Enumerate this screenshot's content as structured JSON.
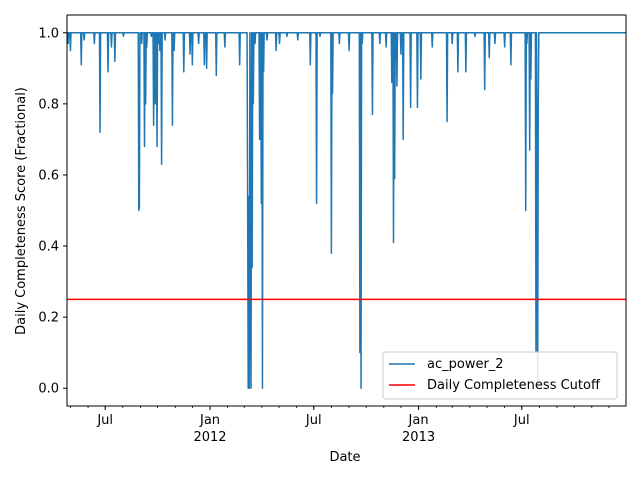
{
  "chart_data": {
    "type": "line",
    "title": "",
    "xlabel": "Date",
    "ylabel": "Daily Completeness Score (Fractional)",
    "xlim": [
      "2011-04-25",
      "2013-12-31"
    ],
    "ylim": [
      -0.05,
      1.05
    ],
    "yticks": [
      "0.0",
      "0.2",
      "0.4",
      "0.6",
      "0.8",
      "1.0"
    ],
    "xticks": [
      {
        "date": "2011-07-01",
        "label": "Jul",
        "sublabel": ""
      },
      {
        "date": "2012-01-01",
        "label": "Jan",
        "sublabel": "2012"
      },
      {
        "date": "2012-07-01",
        "label": "Jul",
        "sublabel": ""
      },
      {
        "date": "2013-01-01",
        "label": "Jan",
        "sublabel": "2013"
      },
      {
        "date": "2013-07-01",
        "label": "Jul",
        "sublabel": ""
      }
    ],
    "grid": false,
    "legend_position": "lower-right",
    "series": [
      {
        "name": "ac_power_2",
        "color": "#1f77b4",
        "baseline": 1.0,
        "dips": [
          [
            "2011-04-27",
            0.97
          ],
          [
            "2011-05-01",
            0.95
          ],
          [
            "2011-05-20",
            0.91
          ],
          [
            "2011-05-25",
            0.98
          ],
          [
            "2011-06-12",
            0.97
          ],
          [
            "2011-06-22",
            0.72
          ],
          [
            "2011-07-06",
            0.89
          ],
          [
            "2011-07-12",
            0.96
          ],
          [
            "2011-07-18",
            0.92
          ],
          [
            "2011-08-02",
            0.99
          ],
          [
            "2011-08-29",
            0.5
          ],
          [
            "2011-08-30",
            0.51
          ],
          [
            "2011-09-03",
            0.97
          ],
          [
            "2011-09-08",
            0.68
          ],
          [
            "2011-09-10",
            0.8
          ],
          [
            "2011-09-12",
            0.96
          ],
          [
            "2011-09-20",
            0.99
          ],
          [
            "2011-09-24",
            0.74
          ],
          [
            "2011-09-27",
            0.8
          ],
          [
            "2011-09-30",
            0.68
          ],
          [
            "2011-10-03",
            0.97
          ],
          [
            "2011-10-05",
            0.95
          ],
          [
            "2011-10-08",
            0.63
          ],
          [
            "2011-10-14",
            0.98
          ],
          [
            "2011-10-27",
            0.74
          ],
          [
            "2011-10-30",
            0.95
          ],
          [
            "2011-11-16",
            0.89
          ],
          [
            "2011-11-27",
            0.94
          ],
          [
            "2011-12-01",
            0.91
          ],
          [
            "2011-12-12",
            0.97
          ],
          [
            "2011-12-22",
            0.91
          ],
          [
            "2011-12-26",
            0.9
          ],
          [
            "2012-01-12",
            0.88
          ],
          [
            "2012-01-27",
            0.96
          ],
          [
            "2012-02-22",
            0.91
          ],
          [
            "2012-03-07",
            0.52
          ],
          [
            "2012-03-08",
            0.0
          ],
          [
            "2012-03-09",
            0.54
          ],
          [
            "2012-03-10",
            0.0
          ],
          [
            "2012-03-12",
            0.39
          ],
          [
            "2012-03-13",
            0.0
          ],
          [
            "2012-03-15",
            0.34
          ],
          [
            "2012-03-17",
            0.8
          ],
          [
            "2012-03-20",
            0.97
          ],
          [
            "2012-03-28",
            0.7
          ],
          [
            "2012-03-31",
            0.52
          ],
          [
            "2012-04-02",
            0.0
          ],
          [
            "2012-04-04",
            0.89
          ],
          [
            "2012-04-10",
            0.98
          ],
          [
            "2012-04-26",
            0.95
          ],
          [
            "2012-05-02",
            0.97
          ],
          [
            "2012-05-15",
            0.99
          ],
          [
            "2012-06-03",
            0.98
          ],
          [
            "2012-06-25",
            0.91
          ],
          [
            "2012-07-06",
            0.52
          ],
          [
            "2012-07-12",
            0.99
          ],
          [
            "2012-08-01",
            0.38
          ],
          [
            "2012-08-03",
            0.83
          ],
          [
            "2012-08-15",
            0.97
          ],
          [
            "2012-09-01",
            0.95
          ],
          [
            "2012-09-20",
            0.1
          ],
          [
            "2012-09-22",
            0.0
          ],
          [
            "2012-09-24",
            0.97
          ],
          [
            "2012-10-12",
            0.77
          ],
          [
            "2012-10-25",
            0.97
          ],
          [
            "2012-11-05",
            0.96
          ],
          [
            "2012-11-15",
            0.86
          ],
          [
            "2012-11-18",
            0.41
          ],
          [
            "2012-11-20",
            0.59
          ],
          [
            "2012-11-24",
            0.85
          ],
          [
            "2012-12-01",
            0.94
          ],
          [
            "2012-12-05",
            0.7
          ],
          [
            "2012-12-18",
            0.79
          ],
          [
            "2012-12-30",
            0.79
          ],
          [
            "2013-01-05",
            0.87
          ],
          [
            "2013-01-25",
            0.96
          ],
          [
            "2013-02-20",
            0.75
          ],
          [
            "2013-03-01",
            0.97
          ],
          [
            "2013-03-11",
            0.89
          ],
          [
            "2013-03-25",
            0.89
          ],
          [
            "2013-04-10",
            0.99
          ],
          [
            "2013-04-27",
            0.84
          ],
          [
            "2013-05-05",
            0.93
          ],
          [
            "2013-05-15",
            0.97
          ],
          [
            "2013-06-01",
            0.96
          ],
          [
            "2013-06-12",
            0.91
          ],
          [
            "2013-07-08",
            0.5
          ],
          [
            "2013-07-10",
            0.97
          ],
          [
            "2013-07-15",
            0.67
          ],
          [
            "2013-07-17",
            0.87
          ],
          [
            "2013-07-26",
            0.1
          ],
          [
            "2013-07-28",
            0.42
          ],
          [
            "2013-07-29",
            0.0
          ],
          [
            "2013-07-30",
            0.8
          ]
        ]
      },
      {
        "name": "Daily Completeness Cutoff",
        "color": "#ff0000",
        "value": 0.25
      }
    ]
  }
}
